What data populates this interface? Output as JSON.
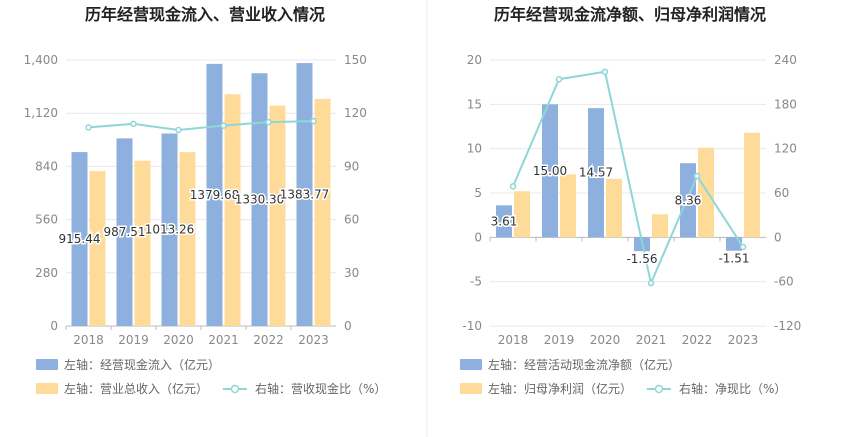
{
  "colors": {
    "bar1": "#8eb0de",
    "bar2": "#ffdb99",
    "line": "#8fd6d8",
    "grid": "#e8e8e8",
    "axis": "#bbbbbb"
  },
  "chart_data": [
    {
      "type": "bar",
      "title": "历年经营现金流入、营业收入情况",
      "categories": [
        "2018",
        "2019",
        "2020",
        "2021",
        "2022",
        "2023"
      ],
      "left_axis": {
        "min": 0,
        "max": 1400,
        "ticks": [
          0,
          280,
          560,
          840,
          1120,
          1400
        ],
        "tick_labels": [
          "0",
          "280",
          "560",
          "840",
          "1,120",
          "1,400"
        ]
      },
      "right_axis": {
        "min": 0,
        "max": 150,
        "ticks": [
          0,
          30,
          60,
          90,
          120,
          150
        ],
        "tick_labels": [
          "0",
          "30",
          "60",
          "90",
          "120",
          "150"
        ]
      },
      "series": [
        {
          "name": "左轴：经营现金流入（亿元）",
          "kind": "bar",
          "axis": "left",
          "values": [
            915.44,
            987.51,
            1013.26,
            1379.68,
            1330.3,
            1383.77
          ],
          "labels": [
            "915.44",
            "987.51",
            "1013.26",
            "1379.68",
            "1330.30",
            "1383.77"
          ]
        },
        {
          "name": "左轴：营业总收入（亿元）",
          "kind": "bar",
          "axis": "left",
          "values": [
            815,
            870,
            915,
            1220,
            1160,
            1195
          ]
        },
        {
          "name": "右轴：营收现金比（%）",
          "kind": "line",
          "axis": "right",
          "values": [
            112,
            114,
            110.5,
            113,
            115,
            115.5
          ]
        }
      ],
      "grid": true,
      "legend": "bottom"
    },
    {
      "type": "bar",
      "title": "历年经营现金流净额、归母净利润情况",
      "categories": [
        "2018",
        "2019",
        "2020",
        "2021",
        "2022",
        "2023"
      ],
      "left_axis": {
        "min": -10,
        "max": 20,
        "ticks": [
          -10,
          -5,
          0,
          5,
          10,
          15,
          20
        ],
        "tick_labels": [
          "-10",
          "-5",
          "0",
          "5",
          "10",
          "15",
          "20"
        ]
      },
      "right_axis": {
        "min": -120,
        "max": 240,
        "ticks": [
          -120,
          -60,
          0,
          60,
          120,
          180,
          240
        ],
        "tick_labels": [
          "-120",
          "-60",
          "0",
          "60",
          "120",
          "180",
          "240"
        ]
      },
      "series": [
        {
          "name": "左轴：经营活动现金流净额（亿元）",
          "kind": "bar",
          "axis": "left",
          "values": [
            3.61,
            15.0,
            14.57,
            -1.56,
            8.36,
            -1.51
          ],
          "labels": [
            "3.61",
            "15.00",
            "14.57",
            "-1.56",
            "8.36",
            "-1.51"
          ]
        },
        {
          "name": "左轴：归母净利润（亿元）",
          "kind": "bar",
          "axis": "left",
          "values": [
            5.2,
            7.1,
            6.6,
            2.6,
            10.1,
            11.8
          ]
        },
        {
          "name": "右轴：净现比（%）",
          "kind": "line",
          "axis": "right",
          "values": [
            69,
            214,
            224,
            -62,
            83,
            -13
          ]
        }
      ],
      "grid": true,
      "legend": "bottom"
    }
  ]
}
